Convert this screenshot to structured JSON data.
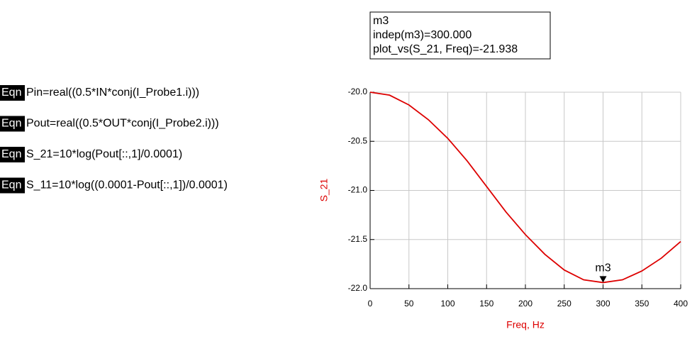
{
  "equations": [
    {
      "tag": "Eqn",
      "text": "Pin=real((0.5*IN*conj(I_Probe1.i)))"
    },
    {
      "tag": "Eqn",
      "text": "Pout=real((0.5*OUT*conj(I_Probe2.i)))"
    },
    {
      "tag": "Eqn",
      "text": "S_21=10*log(Pout[::,1]/0.0001)"
    },
    {
      "tag": "Eqn",
      "text": "S_11=10*log((0.0001-Pout[::,1])/0.0001)"
    }
  ],
  "chart_data": {
    "type": "line",
    "x_label": "Freq, Hz",
    "y_label": "S_21",
    "x": [
      0,
      25,
      50,
      75,
      100,
      125,
      150,
      175,
      200,
      225,
      250,
      275,
      300,
      325,
      350,
      375,
      400
    ],
    "series": [
      {
        "name": "S_21",
        "color": "#dd0000",
        "values": [
          -20.0,
          -20.03,
          -20.13,
          -20.28,
          -20.47,
          -20.7,
          -20.96,
          -21.22,
          -21.45,
          -21.65,
          -21.81,
          -21.91,
          -21.938,
          -21.91,
          -21.82,
          -21.69,
          -21.52
        ]
      }
    ],
    "xlim": [
      0,
      400
    ],
    "xticks": [
      0,
      50,
      100,
      150,
      200,
      250,
      300,
      350,
      400
    ],
    "ylim": [
      -22,
      -20
    ],
    "yticks": [
      {
        "value": -20,
        "label": "-20.0"
      },
      -20.5,
      {
        "value": -21,
        "label": "-21.0"
      },
      -21.5,
      {
        "value": -22,
        "label": "-22.0"
      }
    ],
    "grid": true,
    "marker": {
      "name": "m3",
      "x": 300,
      "y": -21.938,
      "readout": [
        "m3",
        "indep(m3)=300.000",
        "plot_vs(S_21, Freq)=-21.938"
      ]
    }
  }
}
